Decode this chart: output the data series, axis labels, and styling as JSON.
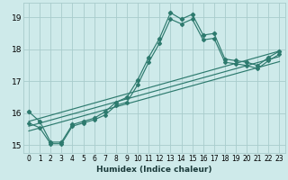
{
  "xlabel": "Humidex (Indice chaleur)",
  "bg_color": "#ceeaea",
  "grid_color": "#a8cccc",
  "line_color": "#2d7a6e",
  "xlim": [
    -0.5,
    23.5
  ],
  "ylim": [
    14.75,
    19.45
  ],
  "yticks": [
    15,
    16,
    17,
    18,
    19
  ],
  "xticks": [
    0,
    1,
    2,
    3,
    4,
    5,
    6,
    7,
    8,
    9,
    10,
    11,
    12,
    13,
    14,
    15,
    16,
    17,
    18,
    19,
    20,
    21,
    22,
    23
  ],
  "main_line": [
    [
      0,
      16.05
    ],
    [
      1,
      15.75
    ],
    [
      2,
      15.1
    ],
    [
      3,
      15.1
    ],
    [
      4,
      15.65
    ],
    [
      5,
      15.75
    ],
    [
      6,
      15.85
    ],
    [
      7,
      16.05
    ],
    [
      8,
      16.35
    ],
    [
      9,
      16.5
    ],
    [
      10,
      17.05
    ],
    [
      11,
      17.75
    ],
    [
      12,
      18.35
    ],
    [
      13,
      19.15
    ],
    [
      14,
      18.95
    ],
    [
      15,
      19.1
    ],
    [
      16,
      18.45
    ],
    [
      17,
      18.5
    ],
    [
      18,
      17.7
    ],
    [
      19,
      17.65
    ],
    [
      20,
      17.6
    ],
    [
      21,
      17.5
    ],
    [
      22,
      17.75
    ],
    [
      23,
      17.95
    ]
  ],
  "secondary_line": [
    [
      0,
      15.7
    ],
    [
      1,
      15.55
    ],
    [
      2,
      15.05
    ],
    [
      3,
      15.05
    ],
    [
      4,
      15.6
    ],
    [
      5,
      15.7
    ],
    [
      6,
      15.8
    ],
    [
      7,
      15.95
    ],
    [
      8,
      16.25
    ],
    [
      9,
      16.35
    ],
    [
      10,
      16.9
    ],
    [
      11,
      17.6
    ],
    [
      12,
      18.2
    ],
    [
      13,
      18.95
    ],
    [
      14,
      18.8
    ],
    [
      15,
      18.95
    ],
    [
      16,
      18.3
    ],
    [
      17,
      18.35
    ],
    [
      18,
      17.6
    ],
    [
      19,
      17.55
    ],
    [
      20,
      17.5
    ],
    [
      21,
      17.4
    ],
    [
      22,
      17.65
    ],
    [
      23,
      17.85
    ]
  ],
  "regression_lines": [
    {
      "start_x": 0,
      "start_y": 15.75,
      "end_x": 23,
      "end_y": 17.95
    },
    {
      "start_x": 0,
      "start_y": 15.6,
      "end_x": 23,
      "end_y": 17.78
    },
    {
      "start_x": 0,
      "start_y": 15.45,
      "end_x": 23,
      "end_y": 17.62
    }
  ]
}
